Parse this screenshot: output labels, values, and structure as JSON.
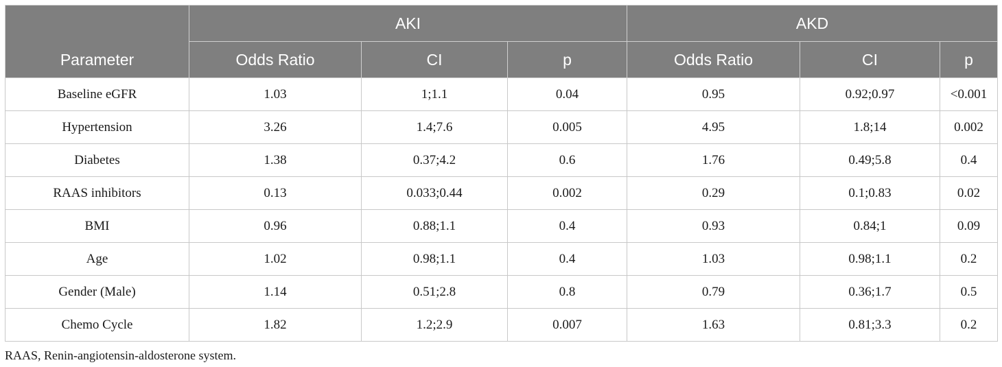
{
  "table": {
    "groups": {
      "aki": "AKI",
      "akd": "AKD"
    },
    "columns": {
      "parameter": "Parameter",
      "aki_or": "Odds Ratio",
      "aki_ci": "CI",
      "aki_p": "p",
      "akd_or": "Odds Ratio",
      "akd_ci": "CI",
      "akd_p": "p"
    },
    "rows": [
      {
        "parameter": "Baseline eGFR",
        "aki_or": "1.03",
        "aki_ci": "1;1.1",
        "aki_p": "0.04",
        "akd_or": "0.95",
        "akd_ci": "0.92;0.97",
        "akd_p": "<0.001"
      },
      {
        "parameter": "Hypertension",
        "aki_or": "3.26",
        "aki_ci": "1.4;7.6",
        "aki_p": "0.005",
        "akd_or": "4.95",
        "akd_ci": "1.8;14",
        "akd_p": "0.002"
      },
      {
        "parameter": "Diabetes",
        "aki_or": "1.38",
        "aki_ci": "0.37;4.2",
        "aki_p": "0.6",
        "akd_or": "1.76",
        "akd_ci": "0.49;5.8",
        "akd_p": "0.4"
      },
      {
        "parameter": "RAAS inhibitors",
        "aki_or": "0.13",
        "aki_ci": "0.033;0.44",
        "aki_p": "0.002",
        "akd_or": "0.29",
        "akd_ci": "0.1;0.83",
        "akd_p": "0.02"
      },
      {
        "parameter": "BMI",
        "aki_or": "0.96",
        "aki_ci": "0.88;1.1",
        "aki_p": "0.4",
        "akd_or": "0.93",
        "akd_ci": "0.84;1",
        "akd_p": "0.09"
      },
      {
        "parameter": "Age",
        "aki_or": "1.02",
        "aki_ci": "0.98;1.1",
        "aki_p": "0.4",
        "akd_or": "1.03",
        "akd_ci": "0.98;1.1",
        "akd_p": "0.2"
      },
      {
        "parameter": "Gender (Male)",
        "aki_or": "1.14",
        "aki_ci": "0.51;2.8",
        "aki_p": "0.8",
        "akd_or": "0.79",
        "akd_ci": "0.36;1.7",
        "akd_p": "0.5"
      },
      {
        "parameter": "Chemo Cycle",
        "aki_or": "1.82",
        "aki_ci": "1.2;2.9",
        "aki_p": "0.007",
        "akd_or": "1.63",
        "akd_ci": "0.81;3.3",
        "akd_p": "0.2"
      }
    ],
    "header_color": "#7f7f7f"
  },
  "footnote": "RAAS, Renin-angiotensin-aldosterone system."
}
